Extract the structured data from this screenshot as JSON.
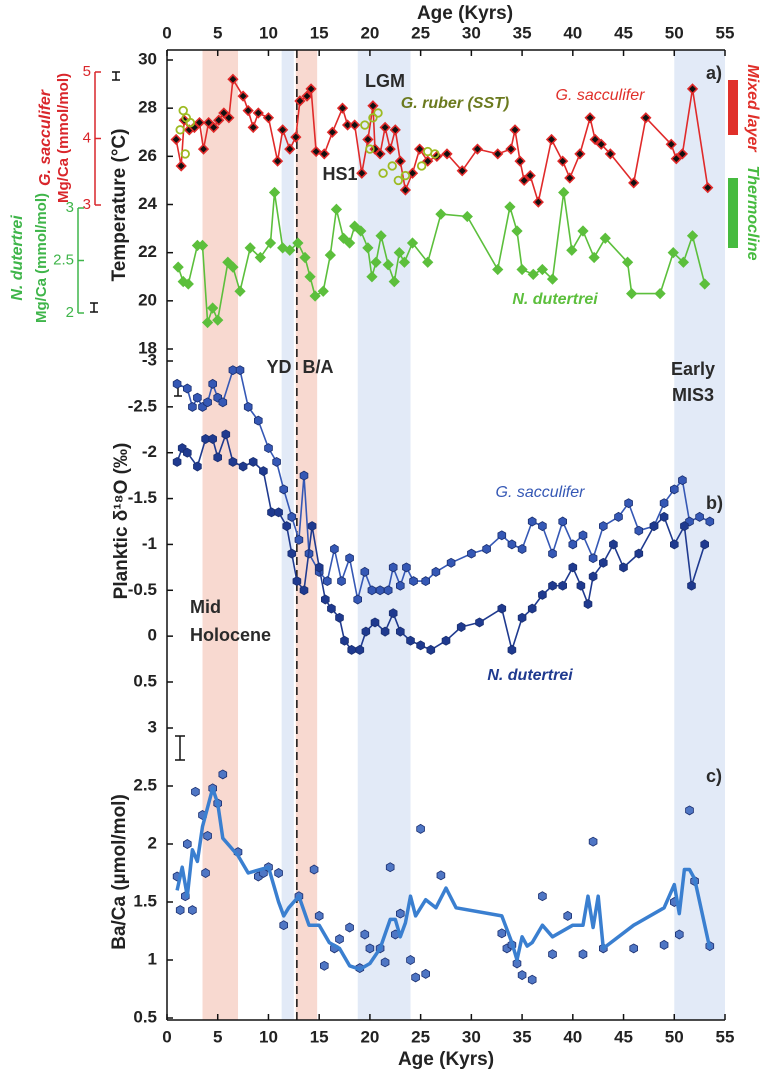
{
  "chart_data": [
    {
      "type": "line",
      "xlabel": "Age (Kyrs)",
      "xaxis_position": "top",
      "xlim": [
        0,
        55
      ],
      "xticks": [
        0,
        5,
        10,
        15,
        20,
        25,
        30,
        35,
        40,
        45,
        50,
        55
      ],
      "ylabel": "Temperature (°C)",
      "ylim": [
        18,
        30
      ],
      "yticks": [
        18,
        20,
        22,
        24,
        26,
        28,
        30
      ],
      "y2label": [
        "G. sacculifer",
        "Mg/Ca (mmol/mol)"
      ],
      "y2lim": [
        3,
        5
      ],
      "y2ticks": [
        3,
        4,
        5
      ],
      "y2color": "#d9262b",
      "y3label": [
        "N. dutertrei",
        "Mg/Ca (mmol/mol)"
      ],
      "y3lim": [
        2,
        3
      ],
      "y3ticks": [
        2,
        2.5,
        3
      ],
      "y3color": "#3fb54a",
      "spans": [
        {
          "x": [
            3.5,
            7
          ],
          "color": "#f8d9d0"
        },
        {
          "x": [
            11.3,
            12.5
          ],
          "color": "#e2eaf7"
        },
        {
          "x": [
            12.7,
            14.8
          ],
          "color": "#f8d9d0"
        },
        {
          "x": [
            18.8,
            24
          ],
          "color": "#e2eaf7"
        },
        {
          "x": [
            50,
            55
          ],
          "color": "#e2eaf7"
        }
      ],
      "vline": 12.8,
      "annotations": [
        "a)",
        "LGM",
        "HS1",
        "YD",
        "B/A",
        "Early",
        "MIS3",
        "Mixed layer",
        "Thermocline"
      ],
      "series": [
        {
          "name": "G. sacculifer",
          "color": "#e02a2a",
          "marker": "diamond",
          "marker_fill": "#111111",
          "line": true,
          "x": [
            0.9,
            1.4,
            1.7,
            2.2,
            2.7,
            3.2,
            3.6,
            4.1,
            4.6,
            5.1,
            5.6,
            6.1,
            6.5,
            7.5,
            8.0,
            8.5,
            9.0,
            10.0,
            10.9,
            11.4,
            12.1,
            12.7,
            13.1,
            13.8,
            14.2,
            14.7,
            15.5,
            16.3,
            17.3,
            17.8,
            18.5,
            19.2,
            19.8,
            20.3,
            20.5,
            21.0,
            21.5,
            22.0,
            22.5,
            23.0,
            23.5,
            24.2,
            24.9,
            25.7,
            26.6,
            27.6,
            29.1,
            30.6,
            32.6,
            33.9,
            34.3,
            34.8,
            35.2,
            35.8,
            36.6,
            37.9,
            39.0,
            39.7,
            40.7,
            41.7,
            42.2,
            42.8,
            43.7,
            46.0,
            47.2,
            49.7,
            50.2,
            50.8,
            51.8,
            53.3
          ],
          "values": [
            26.7,
            25.6,
            27.5,
            27.1,
            27.2,
            27.4,
            26.3,
            27.4,
            27.2,
            27.5,
            27.8,
            27.6,
            29.2,
            28.5,
            27.9,
            27.2,
            27.8,
            27.6,
            25.8,
            27.1,
            26.3,
            26.8,
            28.3,
            28.5,
            28.8,
            26.2,
            26.1,
            27.0,
            28.0,
            27.3,
            27.3,
            25.3,
            26.7,
            28.1,
            26.3,
            26.1,
            27.2,
            26.3,
            27.1,
            25.8,
            24.6,
            25.3,
            26.3,
            25.8,
            26.0,
            26.1,
            25.4,
            26.3,
            26.1,
            26.3,
            27.1,
            25.8,
            25.0,
            25.2,
            24.1,
            26.7,
            25.8,
            25.1,
            26.1,
            27.6,
            26.7,
            26.5,
            26.1,
            24.9,
            27.6,
            26.5,
            25.9,
            26.1,
            28.8,
            24.7
          ]
        },
        {
          "name": "N. dutertrei",
          "color": "#5cbf3c",
          "marker": "diamond",
          "marker_fill": "#5cbf3c",
          "line": true,
          "x": [
            1.1,
            1.6,
            2.1,
            3.0,
            3.5,
            4.0,
            4.5,
            5.0,
            6.0,
            6.5,
            7.2,
            8.2,
            9.2,
            10.2,
            10.6,
            11.4,
            12.1,
            12.9,
            13.6,
            14.1,
            14.6,
            15.4,
            16.1,
            16.7,
            17.4,
            18.0,
            18.5,
            19.1,
            19.8,
            20.2,
            20.6,
            21.1,
            21.8,
            22.4,
            22.9,
            23.4,
            24.2,
            25.7,
            27.0,
            29.6,
            32.6,
            33.8,
            34.5,
            35.0,
            36.1,
            37.0,
            38.0,
            39.1,
            39.9,
            41.0,
            42.1,
            43.2,
            45.4,
            45.8,
            48.6,
            49.9,
            50.9,
            51.8,
            53.0
          ],
          "values": [
            21.4,
            20.8,
            20.7,
            22.3,
            22.3,
            19.1,
            19.7,
            19.2,
            21.6,
            21.4,
            20.4,
            22.2,
            21.8,
            22.4,
            24.5,
            22.2,
            22.1,
            22.4,
            21.8,
            21.0,
            20.2,
            20.4,
            21.9,
            23.8,
            22.6,
            22.4,
            23.1,
            22.9,
            22.2,
            21.0,
            21.6,
            22.7,
            21.5,
            20.8,
            22.0,
            21.6,
            22.4,
            21.6,
            23.6,
            23.5,
            21.3,
            23.9,
            22.9,
            21.3,
            21.1,
            21.3,
            20.9,
            24.5,
            22.1,
            22.9,
            21.8,
            22.6,
            21.6,
            20.3,
            20.3,
            22.0,
            21.6,
            22.7,
            20.7
          ]
        },
        {
          "name": "G. ruber (SST)",
          "color": "#9dbb22",
          "marker": "open-circle",
          "line": false,
          "x": [
            1.3,
            1.6,
            1.8,
            1.9,
            2.3,
            19.5,
            20.0,
            20.3,
            20.8,
            21.3,
            22.2,
            22.8,
            23.5,
            25.1,
            25.7,
            26.4
          ],
          "values": [
            27.1,
            27.9,
            26.1,
            27.6,
            27.4,
            27.3,
            26.3,
            27.6,
            27.8,
            25.3,
            25.6,
            25.0,
            25.2,
            25.6,
            26.2,
            26.1
          ]
        }
      ]
    },
    {
      "type": "line",
      "xlim": [
        0,
        55
      ],
      "ylabel": "Planktic δ¹⁸O (‰)",
      "ylim": [
        -3,
        0.5
      ],
      "y_inverted": true,
      "yticks": [
        -3,
        -2.5,
        -2,
        -1.5,
        -1,
        -0.5,
        0,
        0.5
      ],
      "annotations": [
        "b)",
        "Mid",
        "Holocene"
      ],
      "series": [
        {
          "name": "G. sacculifer",
          "color": "#3558b5",
          "marker": "hexagon",
          "line": true,
          "x": [
            1,
            2,
            2.5,
            3,
            3.5,
            4,
            4.5,
            5,
            5.5,
            6.5,
            7.2,
            8,
            9,
            10,
            10.8,
            11.5,
            12.3,
            13,
            13.5,
            14,
            15,
            15.8,
            16.5,
            17.2,
            18,
            18.8,
            19.5,
            20.2,
            21,
            21.8,
            22.3,
            23,
            23.6,
            24.3,
            25.5,
            26.5,
            28,
            30,
            31.5,
            33,
            34,
            35,
            36,
            37,
            38,
            39,
            40,
            41,
            42,
            43,
            44.5,
            45.5,
            46.5,
            48,
            49,
            50,
            50.8,
            51.5,
            52.5,
            53.5
          ],
          "values": [
            -2.75,
            -2.7,
            -2.5,
            -2.6,
            -2.5,
            -2.55,
            -2.75,
            -2.6,
            -2.55,
            -2.9,
            -2.9,
            -2.5,
            -2.35,
            -2.05,
            -1.9,
            -1.6,
            -1.3,
            -1.05,
            -1.75,
            -0.9,
            -0.7,
            -0.6,
            -0.95,
            -0.6,
            -0.85,
            -0.4,
            -0.7,
            -0.5,
            -0.5,
            -0.5,
            -0.75,
            -0.55,
            -0.75,
            -0.6,
            -0.6,
            -0.7,
            -0.8,
            -0.9,
            -0.95,
            -1.1,
            -1.0,
            -0.95,
            -1.25,
            -1.2,
            -0.9,
            -1.25,
            -1.0,
            -1.1,
            -0.85,
            -1.2,
            -1.3,
            -1.45,
            -1.15,
            -1.2,
            -1.45,
            -1.6,
            -1.7,
            -1.25,
            -1.3,
            -1.25
          ]
        },
        {
          "name": "N. dutertrei",
          "color": "#1f3a8f",
          "marker": "hexagon",
          "line": true,
          "x": [
            1,
            1.5,
            2,
            3,
            3.8,
            4.5,
            5,
            5.8,
            6.5,
            7.5,
            8.5,
            9.5,
            10.3,
            11,
            11.8,
            12.3,
            12.8,
            13.5,
            14.3,
            15,
            15.6,
            16.2,
            17,
            17.5,
            18.2,
            19,
            19.6,
            20.5,
            21.5,
            22.3,
            23,
            24,
            25,
            26,
            27.5,
            29,
            30.8,
            33,
            34,
            35,
            36,
            37,
            38,
            39,
            40,
            40.8,
            41.5,
            42,
            43,
            44,
            45,
            46.5,
            48,
            49,
            50,
            51,
            51.7,
            53
          ],
          "values": [
            -1.9,
            -2.05,
            -2,
            -1.85,
            -2.15,
            -2.15,
            -1.95,
            -2.2,
            -1.9,
            -1.85,
            -1.9,
            -1.8,
            -1.35,
            -1.35,
            -1.2,
            -0.9,
            -0.6,
            -0.5,
            -1.2,
            -0.75,
            -0.4,
            -0.3,
            -0.2,
            0.05,
            0.15,
            0.15,
            -0.05,
            -0.15,
            -0.05,
            -0.25,
            -0.05,
            0.05,
            0.1,
            0.15,
            0.05,
            -0.1,
            -0.15,
            -0.3,
            0.15,
            -0.2,
            -0.3,
            -0.45,
            -0.55,
            -0.55,
            -0.75,
            -0.55,
            -0.35,
            -0.65,
            -0.8,
            -1.0,
            -0.75,
            -0.9,
            -1.2,
            -1.3,
            -1.0,
            -1.2,
            -0.55,
            -1.0
          ]
        }
      ]
    },
    {
      "type": "line",
      "xlabel": "Age (Kyrs)",
      "xaxis_position": "bottom",
      "xlim": [
        0,
        55
      ],
      "xticks": [
        0,
        5,
        10,
        15,
        20,
        25,
        30,
        35,
        40,
        45,
        50,
        55
      ],
      "ylabel": "Ba/Ca (µmol/mol)",
      "ylim": [
        0.5,
        3
      ],
      "yticks": [
        0.5,
        1,
        1.5,
        2,
        2.5,
        3
      ],
      "annotations": [
        "c)"
      ],
      "series": [
        {
          "color": "#4f76c4",
          "marker": "hexagon",
          "line": false,
          "x": [
            1,
            1.3,
            1.8,
            2,
            2.5,
            2.8,
            3.5,
            3.8,
            4,
            4.5,
            5,
            5.5,
            7,
            9,
            9.5,
            10,
            11,
            11.5,
            13,
            14.5,
            15,
            15.5,
            16.5,
            17,
            18,
            19,
            19.5,
            20,
            21,
            21.5,
            22,
            22.5,
            23,
            24,
            24.5,
            25,
            25.5,
            27,
            33,
            33.5,
            34,
            34.5,
            35,
            36,
            37,
            38,
            39.5,
            41,
            42,
            43,
            46,
            49,
            50,
            50.5,
            51.5,
            52,
            53.5
          ],
          "values": [
            1.72,
            1.43,
            1.55,
            2.0,
            1.43,
            2.45,
            2.25,
            1.75,
            2.07,
            2.48,
            2.35,
            2.6,
            1.93,
            1.72,
            1.75,
            1.8,
            1.75,
            1.3,
            1.55,
            1.78,
            1.38,
            0.95,
            1.1,
            1.18,
            1.28,
            0.93,
            1.22,
            1.1,
            1.1,
            0.98,
            1.8,
            1.22,
            1.4,
            1.0,
            0.85,
            2.13,
            0.88,
            1.73,
            1.23,
            1.1,
            1.13,
            0.97,
            0.87,
            0.83,
            1.55,
            1.05,
            1.38,
            1.05,
            2.02,
            1.1,
            1.1,
            1.13,
            1.5,
            1.22,
            2.29,
            1.68,
            1.12
          ]
        },
        {
          "color": "#3a7fd0",
          "marker": "none",
          "line": true,
          "x": [
            1,
            1.5,
            2,
            2.5,
            3,
            3.5,
            4.5,
            5,
            5.5,
            7,
            8,
            10,
            11,
            11.5,
            12,
            13,
            14,
            15,
            16,
            17,
            18,
            19,
            20,
            21,
            22,
            22.5,
            23,
            23.5,
            24,
            24.5,
            25.5,
            26.5,
            27.5,
            28.5,
            33,
            34,
            34.5,
            35,
            35.5,
            36,
            37,
            38,
            40,
            41,
            41.5,
            42,
            42.5,
            43,
            46,
            49,
            50,
            50.5,
            51,
            51.5,
            52,
            53.5
          ],
          "values": [
            1.6,
            1.8,
            1.55,
            1.95,
            1.85,
            2.15,
            2.48,
            2.35,
            2.05,
            1.9,
            1.75,
            1.8,
            1.5,
            1.38,
            1.45,
            1.55,
            1.3,
            1.3,
            1.15,
            1.1,
            0.95,
            0.92,
            0.97,
            1.1,
            1.35,
            1.35,
            1.2,
            1.32,
            1.55,
            1.38,
            1.52,
            1.45,
            1.62,
            1.45,
            1.38,
            1.15,
            1.0,
            1.2,
            1.12,
            1.15,
            1.3,
            1.2,
            1.3,
            1.3,
            1.55,
            1.28,
            1.55,
            1.1,
            1.3,
            1.45,
            1.65,
            1.4,
            1.78,
            1.78,
            1.7,
            1.1
          ]
        }
      ]
    }
  ]
}
